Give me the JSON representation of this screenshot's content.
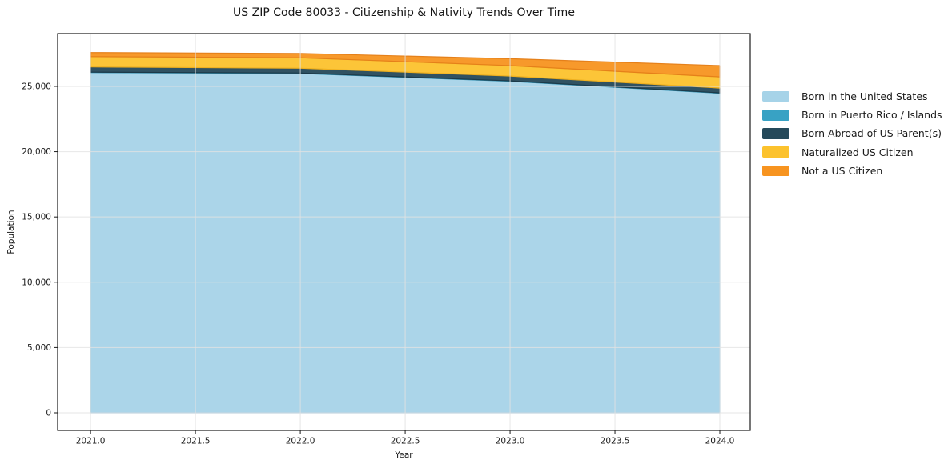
{
  "title": "US ZIP Code 80033 - Citizenship & Nativity Trends Over Time",
  "chart_data": {
    "type": "area",
    "stacked": true,
    "title": "US ZIP Code 80033 - Citizenship & Nativity Trends Over Time",
    "xlabel": "Year",
    "ylabel": "Population",
    "x": [
      2021,
      2022,
      2023,
      2024
    ],
    "series": [
      {
        "name": "Born in the United States",
        "color": "#A6D3E8",
        "edge_color": "#8CC4DE",
        "values": [
          26060,
          25990,
          25390,
          24470
        ]
      },
      {
        "name": "Born in Puerto Rico / Islands",
        "color": "#38A2C4",
        "edge_color": "#2E8FB0",
        "values": [
          30,
          30,
          30,
          30
        ]
      },
      {
        "name": "Born Abroad of US Parent(s)",
        "color": "#25495A",
        "edge_color": "#1C3A49",
        "values": [
          400,
          370,
          370,
          370
        ]
      },
      {
        "name": "Naturalized US Citizen",
        "color": "#FCC22D",
        "edge_color": "#EFB01F",
        "values": [
          790,
          800,
          800,
          860
        ]
      },
      {
        "name": "Not a US Citizen",
        "color": "#F79420",
        "edge_color": "#E5801A",
        "values": [
          310,
          330,
          530,
          860
        ]
      }
    ],
    "x_ticks": [
      {
        "v": 2021.0,
        "label": "2021.0"
      },
      {
        "v": 2021.5,
        "label": "2021.5"
      },
      {
        "v": 2022.0,
        "label": "2022.0"
      },
      {
        "v": 2022.5,
        "label": "2022.5"
      },
      {
        "v": 2023.0,
        "label": "2023.0"
      },
      {
        "v": 2023.5,
        "label": "2023.5"
      },
      {
        "v": 2024.0,
        "label": "2024.0"
      }
    ],
    "y_ticks": [
      {
        "v": 0,
        "label": "0"
      },
      {
        "v": 5000,
        "label": "5,000"
      },
      {
        "v": 10000,
        "label": "10,000"
      },
      {
        "v": 15000,
        "label": "15,000"
      },
      {
        "v": 20000,
        "label": "20,000"
      },
      {
        "v": 25000,
        "label": "25,000"
      }
    ],
    "xlim": [
      2020.843,
      2024.145
    ],
    "ylim": [
      -1348,
      29042
    ],
    "grid": true,
    "grid_color": "#e2e2e2",
    "spine_color": "#1a1a1a",
    "legend_position": "right",
    "background_color": "#ffffff"
  }
}
